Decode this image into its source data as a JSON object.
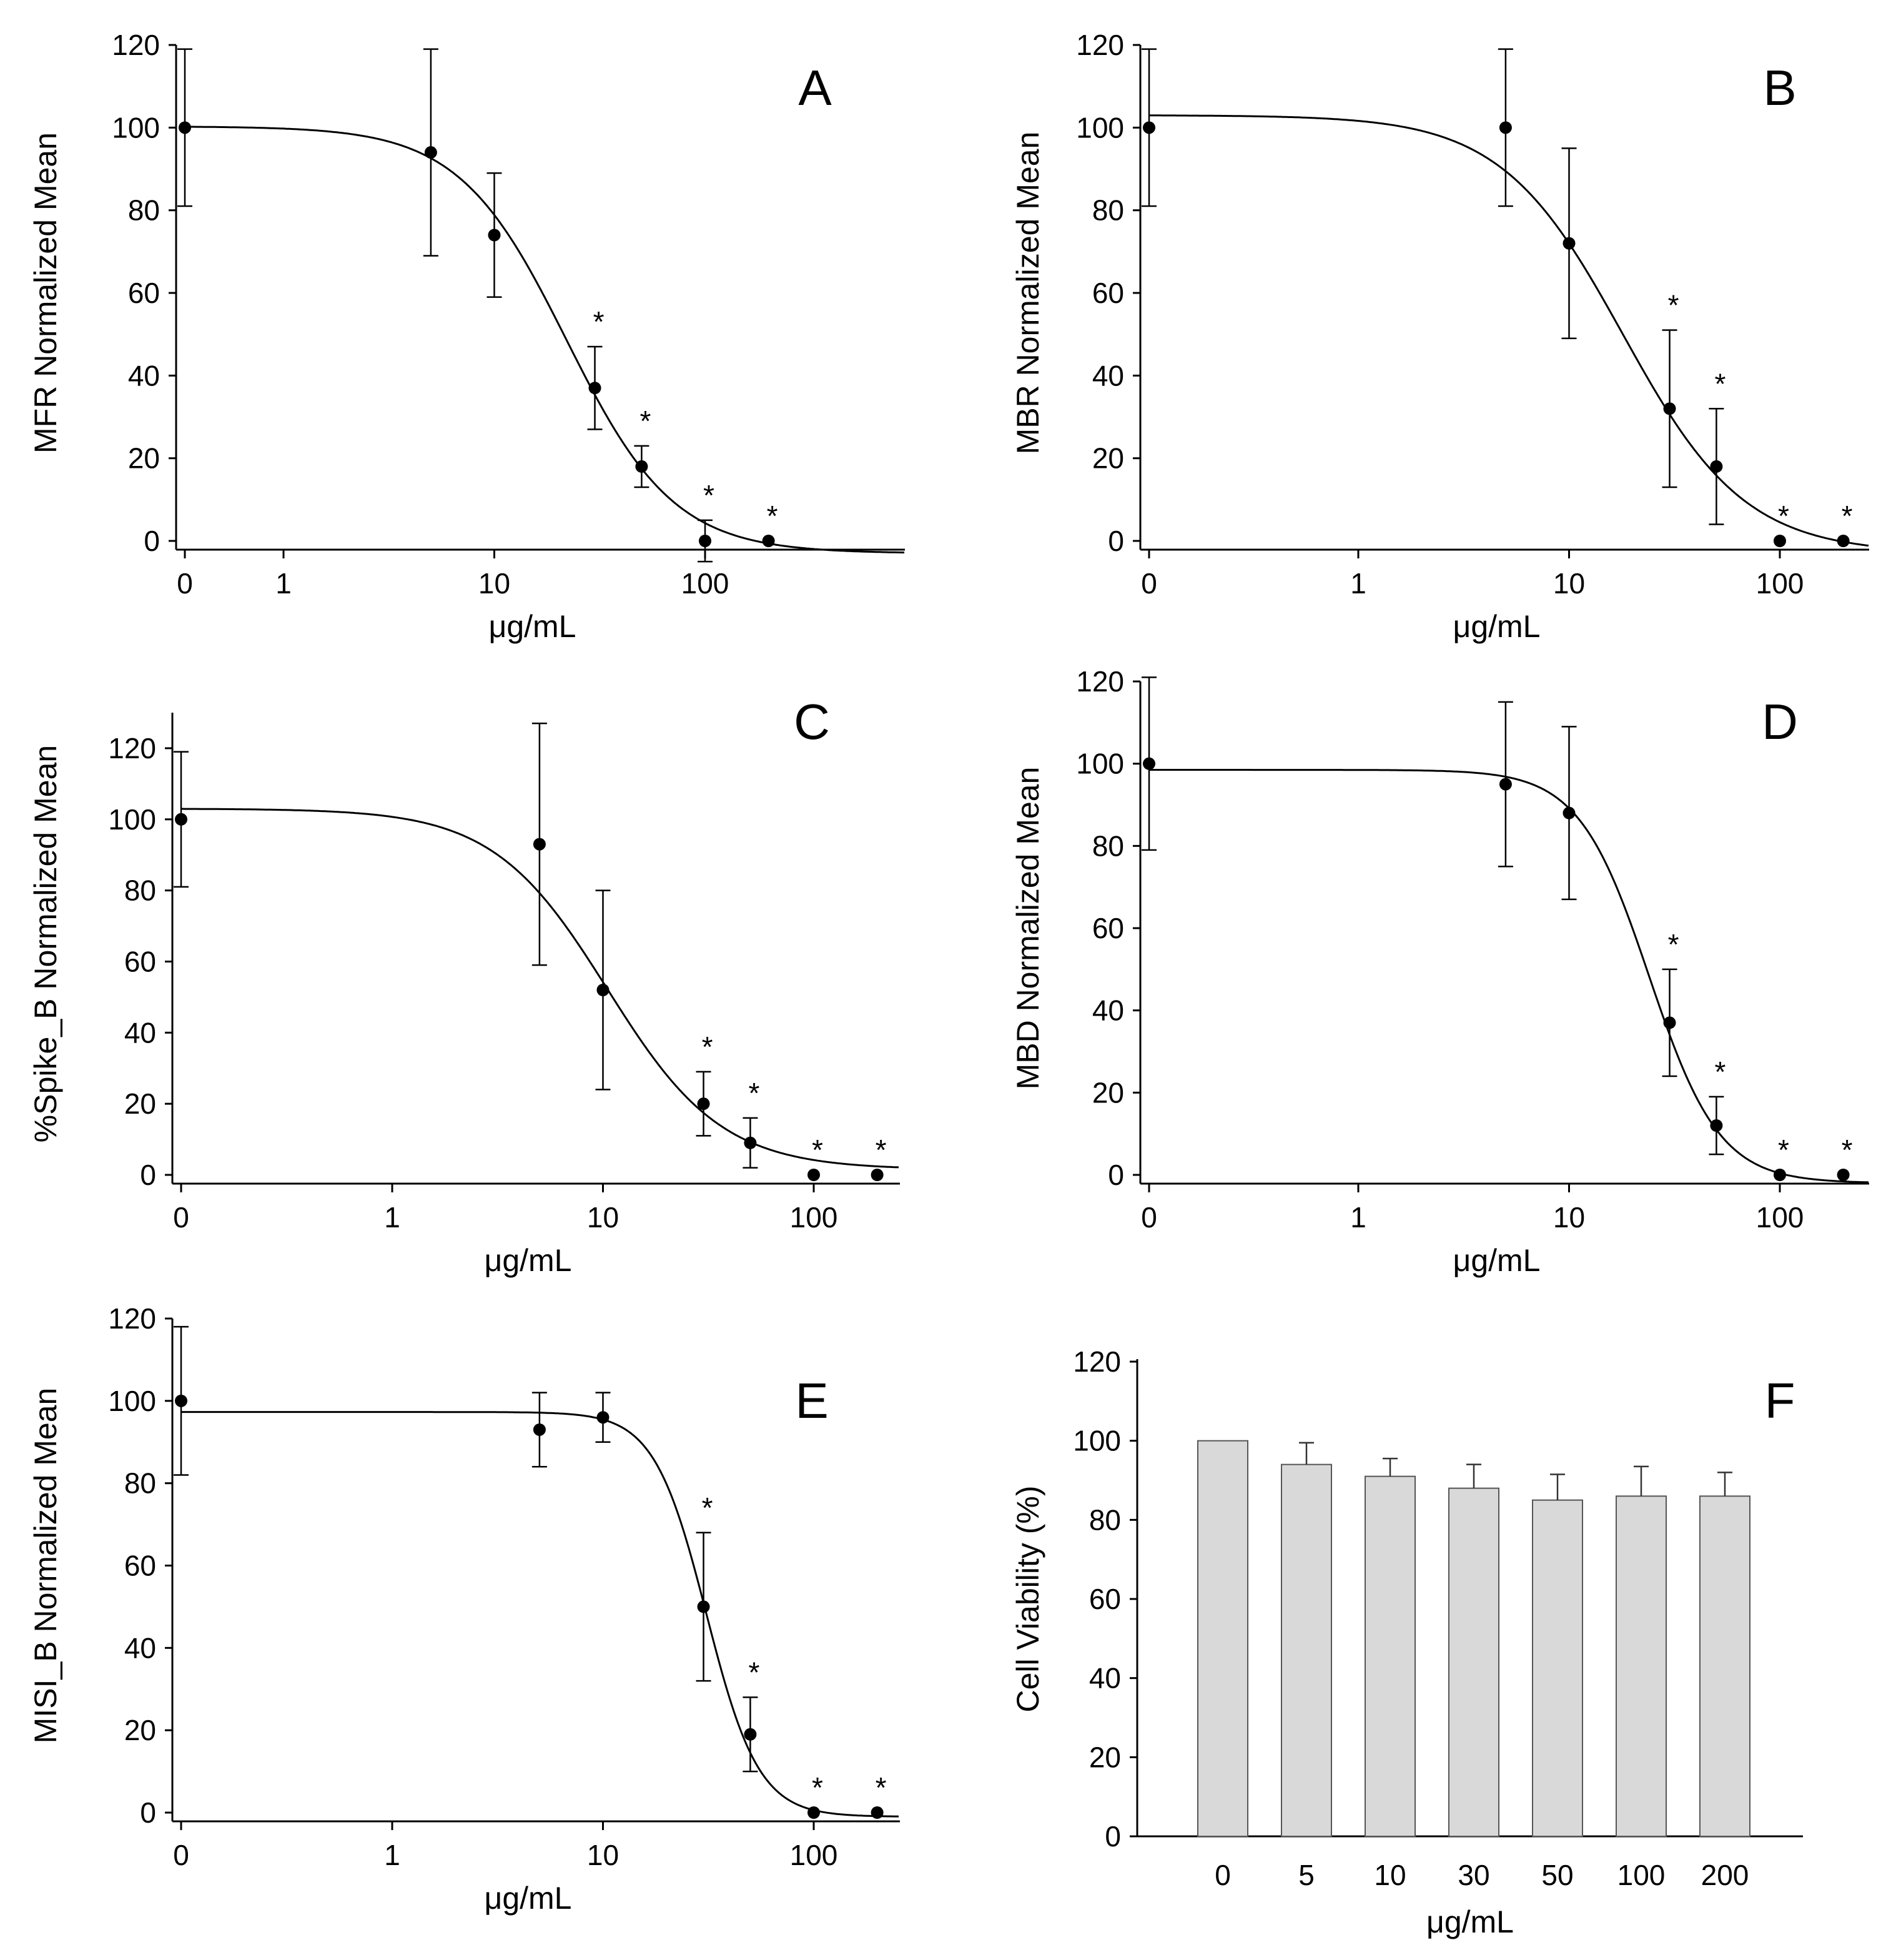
{
  "figure": {
    "background": "#ffffff",
    "ink": "#000000",
    "bar_fill": "#d9d9d9"
  },
  "chart_data": [
    {
      "panel": "A",
      "type": "scatter",
      "xscale": "log",
      "x_values": [
        0,
        5,
        10,
        30,
        50,
        100,
        200
      ],
      "y_values": [
        100,
        94,
        74,
        37,
        18,
        0,
        0
      ],
      "errors": [
        19,
        25,
        15,
        10,
        5,
        5,
        0
      ],
      "significance": [
        "",
        "",
        "",
        "*",
        "*",
        "*",
        "*"
      ],
      "curve": {
        "top": 100.3,
        "bottom": -3,
        "ec50": 22,
        "hill": 1.7
      },
      "xticks": [
        "0",
        "1",
        "10",
        "100"
      ],
      "yticks": [
        "0",
        "20",
        "40",
        "60",
        "80",
        "100",
        "120"
      ],
      "ylim": [
        0,
        120
      ],
      "xlabel": "μg/mL",
      "ylabel": "MFR Normalized Mean"
    },
    {
      "panel": "B",
      "type": "scatter",
      "xscale": "log",
      "x_values": [
        0,
        5,
        10,
        30,
        50,
        100,
        200
      ],
      "y_values": [
        100,
        100,
        72,
        32,
        18,
        0,
        0
      ],
      "errors": [
        19,
        19,
        23,
        19,
        14,
        0,
        0
      ],
      "significance": [
        "",
        "",
        "",
        "*",
        "*",
        "*",
        "*"
      ],
      "curve": {
        "top": 103,
        "bottom": -3,
        "ec50": 18,
        "hill": 1.5
      },
      "xticks": [
        "0",
        "1",
        "10",
        "100"
      ],
      "yticks": [
        "0",
        "20",
        "40",
        "60",
        "80",
        "100",
        "120"
      ],
      "ylim": [
        0,
        120
      ],
      "xlabel": "μg/mL",
      "ylabel": "MBR Normalized Mean"
    },
    {
      "panel": "C",
      "type": "scatter",
      "xscale": "log",
      "x_values": [
        0,
        5,
        10,
        30,
        50,
        100,
        200
      ],
      "y_values": [
        100,
        93,
        52,
        20,
        9,
        0,
        0
      ],
      "errors": [
        19,
        34,
        28,
        9,
        7,
        0,
        0
      ],
      "significance": [
        "",
        "",
        "",
        "*",
        "*",
        "*",
        "*"
      ],
      "curve": {
        "top": 103,
        "bottom": 1.5,
        "ec50": 10.5,
        "hill": 1.6
      },
      "xticks": [
        "0",
        "1",
        "10",
        "100"
      ],
      "yticks": [
        "0",
        "20",
        "40",
        "60",
        "80",
        "100",
        "120"
      ],
      "ylim": [
        0,
        130
      ],
      "xlabel": "μg/mL",
      "ylabel": "%Spike_B Normalized Mean"
    },
    {
      "panel": "D",
      "type": "scatter",
      "xscale": "log",
      "x_values": [
        0,
        5,
        10,
        30,
        50,
        100,
        200
      ],
      "y_values": [
        100,
        95,
        88,
        37,
        12,
        0,
        0
      ],
      "errors": [
        21,
        20,
        21,
        13,
        7,
        0,
        0
      ],
      "significance": [
        "",
        "",
        "",
        "*",
        "*",
        "*",
        "*"
      ],
      "curve": {
        "top": 98.5,
        "bottom": -2,
        "ec50": 24,
        "hill": 2.6
      },
      "xticks": [
        "0",
        "1",
        "10",
        "100"
      ],
      "yticks": [
        "0",
        "20",
        "40",
        "60",
        "80",
        "100",
        "120"
      ],
      "ylim": [
        0,
        120
      ],
      "xlabel": "μg/mL",
      "ylabel": "MBD Normalized Mean"
    },
    {
      "panel": "E",
      "type": "scatter",
      "xscale": "log",
      "x_values": [
        0,
        5,
        10,
        30,
        50,
        100,
        200
      ],
      "y_values": [
        100,
        93,
        96,
        50,
        19,
        0,
        0
      ],
      "errors": [
        18,
        9,
        6,
        18,
        9,
        0,
        0
      ],
      "significance": [
        "",
        "",
        "",
        "*",
        "*",
        "*",
        "*"
      ],
      "curve": {
        "top": 97.3,
        "bottom": -1,
        "ec50": 31,
        "hill": 3.5
      },
      "xticks": [
        "0",
        "1",
        "10",
        "100"
      ],
      "yticks": [
        "0",
        "20",
        "40",
        "60",
        "80",
        "100",
        "120"
      ],
      "ylim": [
        0,
        120
      ],
      "xlabel": "μg/mL",
      "ylabel": "MISI_B Normalized Mean"
    },
    {
      "panel": "F",
      "type": "bar",
      "categories": [
        "0",
        "5",
        "10",
        "30",
        "50",
        "100",
        "200"
      ],
      "values": [
        100,
        94,
        91,
        88,
        85,
        86,
        86
      ],
      "errors": [
        0,
        5.5,
        4.5,
        6,
        6.5,
        7.5,
        6
      ],
      "yticks": [
        "0",
        "20",
        "40",
        "60",
        "80",
        "100",
        "120"
      ],
      "ylim": [
        0,
        120
      ],
      "xlabel": "μg/mL",
      "ylabel": "Cell Viability (%)"
    }
  ]
}
